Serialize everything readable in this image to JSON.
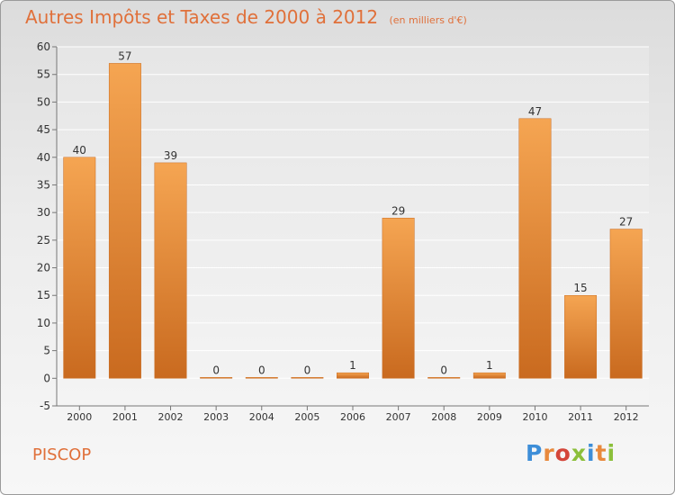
{
  "chart_data": {
    "type": "bar",
    "title": "Autres Impôts et Taxes de 2000 à 2012",
    "subtitle": "(en milliers d'€)",
    "categories": [
      "2000",
      "2001",
      "2002",
      "2003",
      "2004",
      "2005",
      "2006",
      "2007",
      "2008",
      "2009",
      "2010",
      "2011",
      "2012"
    ],
    "values": [
      40,
      57,
      39,
      0,
      0,
      0,
      1,
      29,
      0,
      1,
      47,
      15,
      27
    ],
    "ylim": [
      -5,
      60
    ],
    "yticks": [
      -5,
      0,
      5,
      10,
      15,
      20,
      25,
      30,
      35,
      40,
      45,
      50,
      55,
      60
    ],
    "grid": true,
    "bar_color": "#e8893c",
    "bar_color_light": "#f5a552",
    "bar_color_dark": "#c96a1f"
  },
  "footer": {
    "commune": "PISCOP",
    "brand": "Proxiti",
    "brand_colors": [
      "#3d8ed8",
      "#e8893c",
      "#d4463a",
      "#8bbf3a",
      "#3d8ed8",
      "#e8893c",
      "#8bbf3a"
    ]
  }
}
